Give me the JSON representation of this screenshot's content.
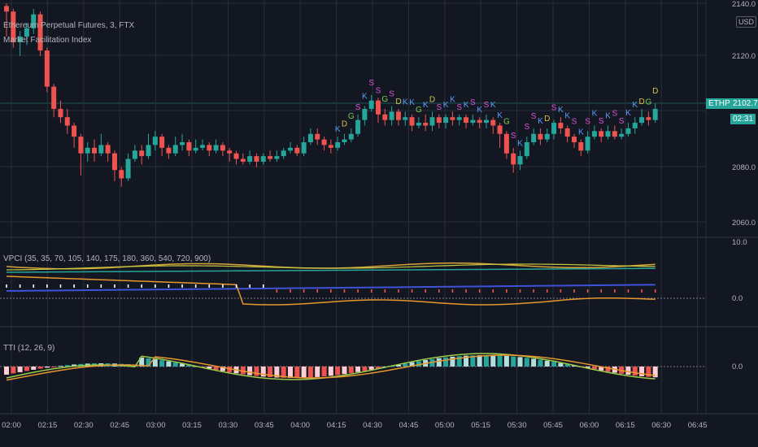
{
  "header": {
    "symbol_title": "Ethereum Perpetual Futures, 3, FTX",
    "indicator_title": "Market Facilitation Index"
  },
  "scale": {
    "currency_button": "USD"
  },
  "price_axis": {
    "labels": [
      "2140.0",
      "2120.0",
      "2100.0",
      "2080.0",
      "2060.0"
    ],
    "last_price": "2102.7",
    "symbol_tag": "ETHPERP",
    "countdown": "02:31"
  },
  "panes": {
    "vpci": {
      "title": "VPCI (35, 35, 70, 105, 140, 175, 180, 360, 540, 720, 900)",
      "axis_top": "10.0",
      "axis_zero": "0.0"
    },
    "tti": {
      "title": "TTI (12, 26, 9)",
      "axis_zero": "0.0"
    }
  },
  "time_axis": [
    "02:00",
    "02:15",
    "02:30",
    "02:45",
    "03:00",
    "03:15",
    "03:30",
    "03:45",
    "04:00",
    "04:15",
    "04:30",
    "04:45",
    "05:00",
    "05:15",
    "05:30",
    "05:45",
    "06:00",
    "06:15",
    "06:30",
    "06:45"
  ],
  "colors": {
    "background": "#131722",
    "up": "#26a69a",
    "down": "#ef5350",
    "grid": "#2a2e39"
  },
  "signal_letters": [
    "K",
    "D",
    "G",
    "S",
    "K",
    "S",
    "S",
    "G",
    "S",
    "D",
    "K",
    "K",
    "G",
    "K",
    "D",
    "S",
    "K",
    "K",
    "S",
    "K",
    "S",
    "K",
    "S",
    "K",
    "K",
    "G",
    "S",
    "K",
    "S",
    "S",
    "K",
    "D",
    "S",
    "K",
    "K",
    "S",
    "K",
    "S",
    "K",
    "S",
    "K",
    "S",
    "S",
    "K",
    "K",
    "D",
    "G",
    "D"
  ],
  "candles": [
    [
      2139,
      2137,
      2140,
      2128
    ],
    [
      2137,
      2126,
      2138,
      2124
    ],
    [
      2126,
      2128,
      2130,
      2121
    ],
    [
      2128,
      2131,
      2133,
      2125
    ],
    [
      2131,
      2136,
      2138,
      2129
    ],
    [
      2136,
      2123,
      2137,
      2121
    ],
    [
      2123,
      2110,
      2124,
      2108
    ],
    [
      2110,
      2102,
      2111,
      2099
    ],
    [
      2102,
      2099,
      2105,
      2097
    ],
    [
      2099,
      2096,
      2102,
      2093
    ],
    [
      2096,
      2092,
      2097,
      2088
    ],
    [
      2092,
      2086,
      2093,
      2078
    ],
    [
      2086,
      2088,
      2090,
      2083
    ],
    [
      2088,
      2086,
      2091,
      2083
    ],
    [
      2086,
      2089,
      2093,
      2085
    ],
    [
      2089,
      2086,
      2090,
      2083
    ],
    [
      2086,
      2080,
      2087,
      2076
    ],
    [
      2080,
      2077,
      2081,
      2074
    ],
    [
      2077,
      2084,
      2086,
      2076
    ],
    [
      2084,
      2087,
      2089,
      2083
    ],
    [
      2087,
      2085,
      2089,
      2082
    ],
    [
      2085,
      2089,
      2093,
      2084
    ],
    [
      2089,
      2092,
      2094,
      2087
    ],
    [
      2092,
      2088,
      2093,
      2085
    ],
    [
      2088,
      2086,
      2089,
      2084
    ],
    [
      2086,
      2089,
      2092,
      2085
    ],
    [
      2089,
      2090,
      2093,
      2087
    ],
    [
      2090,
      2087,
      2091,
      2085
    ],
    [
      2087,
      2088,
      2091,
      2086
    ],
    [
      2088,
      2089,
      2091,
      2087
    ],
    [
      2089,
      2087,
      2090,
      2085
    ],
    [
      2087,
      2089,
      2091,
      2086
    ],
    [
      2089,
      2087,
      2090,
      2085
    ],
    [
      2087,
      2086,
      2088,
      2083
    ],
    [
      2086,
      2084,
      2087,
      2082
    ],
    [
      2084,
      2083,
      2086,
      2082
    ],
    [
      2083,
      2085,
      2087,
      2082
    ],
    [
      2085,
      2083,
      2086,
      2081
    ],
    [
      2083,
      2085,
      2086,
      2082
    ],
    [
      2085,
      2084,
      2087,
      2083
    ],
    [
      2084,
      2085,
      2087,
      2083
    ],
    [
      2085,
      2087,
      2088,
      2084
    ],
    [
      2087,
      2088,
      2090,
      2086
    ],
    [
      2088,
      2086,
      2089,
      2085
    ],
    [
      2086,
      2090,
      2092,
      2085
    ],
    [
      2090,
      2093,
      2095,
      2089
    ],
    [
      2093,
      2091,
      2095,
      2089
    ],
    [
      2091,
      2089,
      2092,
      2087
    ],
    [
      2089,
      2088,
      2091,
      2086
    ],
    [
      2088,
      2090,
      2092,
      2087
    ],
    [
      2090,
      2091,
      2093,
      2089
    ],
    [
      2091,
      2093,
      2095,
      2090
    ],
    [
      2093,
      2098,
      2100,
      2092
    ],
    [
      2098,
      2102,
      2103,
      2096
    ],
    [
      2102,
      2105,
      2107,
      2101
    ],
    [
      2105,
      2100,
      2106,
      2097
    ],
    [
      2100,
      2098,
      2102,
      2096
    ],
    [
      2098,
      2101,
      2103,
      2096
    ],
    [
      2101,
      2098,
      2102,
      2096
    ],
    [
      2098,
      2099,
      2101,
      2096
    ],
    [
      2099,
      2096,
      2100,
      2094
    ],
    [
      2096,
      2097,
      2099,
      2095
    ],
    [
      2097,
      2096,
      2100,
      2094
    ],
    [
      2096,
      2099,
      2101,
      2094
    ],
    [
      2099,
      2097,
      2100,
      2095
    ],
    [
      2097,
      2099,
      2100,
      2095
    ],
    [
      2099,
      2098,
      2101,
      2096
    ],
    [
      2098,
      2099,
      2100,
      2096
    ],
    [
      2099,
      2097,
      2100,
      2095
    ],
    [
      2097,
      2098,
      2100,
      2096
    ],
    [
      2098,
      2097,
      2099,
      2095
    ],
    [
      2097,
      2098,
      2100,
      2095
    ],
    [
      2098,
      2096,
      2099,
      2093
    ],
    [
      2096,
      2093,
      2097,
      2088
    ],
    [
      2093,
      2086,
      2094,
      2084
    ],
    [
      2086,
      2082,
      2088,
      2079
    ],
    [
      2082,
      2085,
      2087,
      2080
    ],
    [
      2085,
      2090,
      2092,
      2084
    ],
    [
      2090,
      2093,
      2095,
      2089
    ],
    [
      2093,
      2091,
      2095,
      2089
    ],
    [
      2091,
      2093,
      2095,
      2090
    ],
    [
      2093,
      2097,
      2098,
      2091
    ],
    [
      2097,
      2095,
      2099,
      2093
    ],
    [
      2095,
      2092,
      2096,
      2090
    ],
    [
      2092,
      2090,
      2093,
      2088
    ],
    [
      2090,
      2087,
      2091,
      2085
    ],
    [
      2087,
      2092,
      2094,
      2086
    ],
    [
      2092,
      2094,
      2096,
      2091
    ],
    [
      2094,
      2092,
      2095,
      2090
    ],
    [
      2092,
      2094,
      2096,
      2091
    ],
    [
      2094,
      2092,
      2096,
      2091
    ],
    [
      2092,
      2093,
      2095,
      2091
    ],
    [
      2093,
      2095,
      2097,
      2092
    ],
    [
      2095,
      2097,
      2099,
      2093
    ],
    [
      2097,
      2099,
      2102,
      2096
    ],
    [
      2099,
      2098,
      2101,
      2096
    ],
    [
      2098,
      2102,
      2104,
      2097
    ]
  ]
}
